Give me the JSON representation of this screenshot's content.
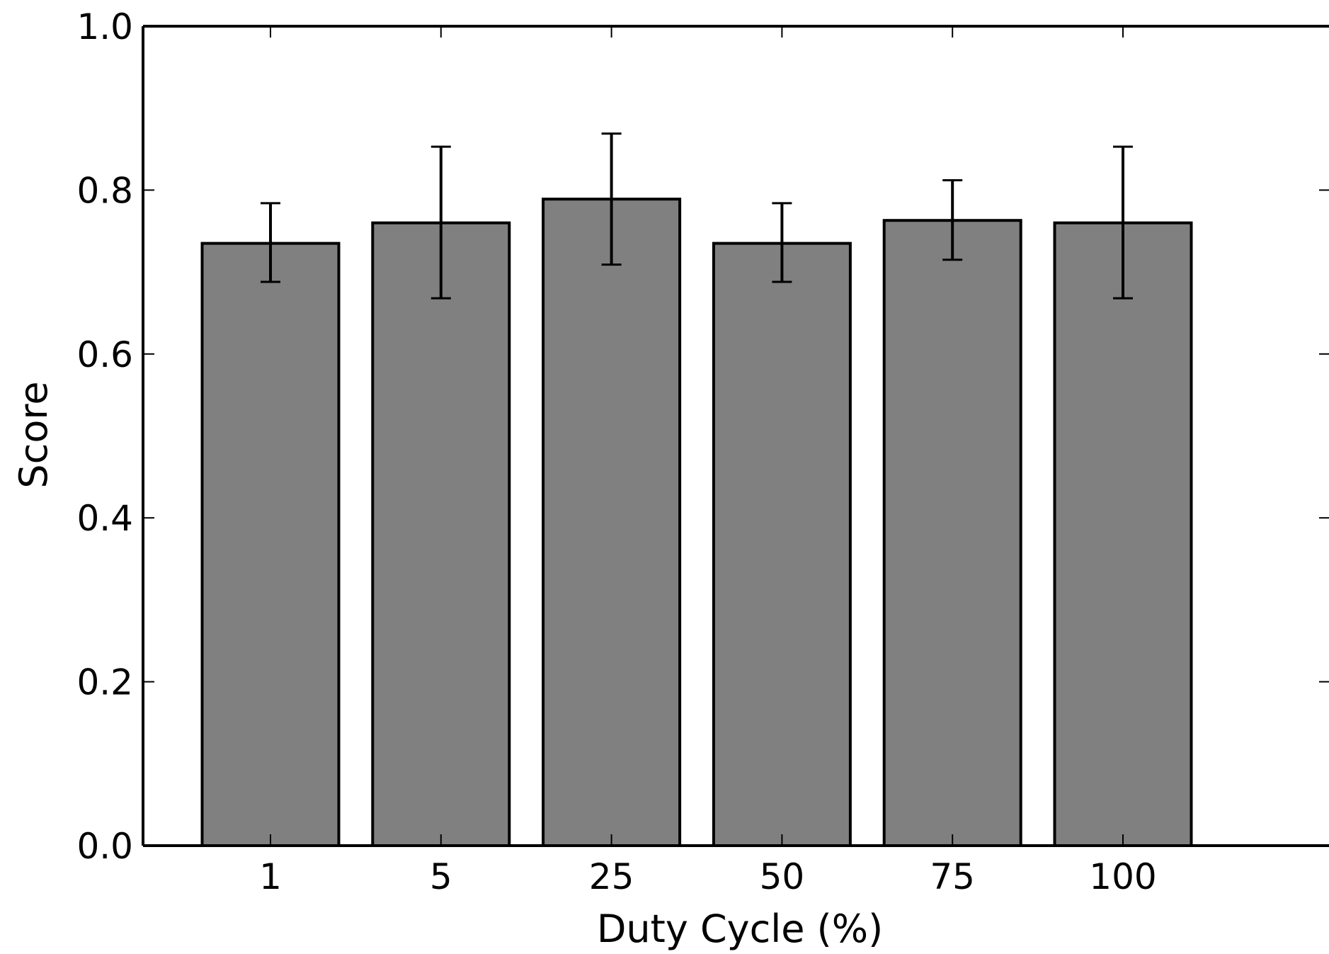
{
  "chart_data": {
    "type": "bar",
    "title": "",
    "xlabel": "Duty Cycle (%)",
    "ylabel": "Score",
    "categories": [
      "1",
      "5",
      "25",
      "50",
      "75",
      "100"
    ],
    "values": [
      0.735,
      0.76,
      0.789,
      0.735,
      0.763,
      0.76
    ],
    "error_low": [
      0.688,
      0.668,
      0.709,
      0.688,
      0.715,
      0.668
    ],
    "error_high": [
      0.784,
      0.853,
      0.869,
      0.784,
      0.812,
      0.853
    ],
    "ylim": [
      0.0,
      1.0
    ],
    "yticks": [
      "0.0",
      "0.2",
      "0.4",
      "0.6",
      "0.8",
      "1.0"
    ],
    "grid": false,
    "legend": "none",
    "colors": {
      "bar_fill": "#808080",
      "bar_edge": "#000000",
      "axis": "#000000"
    }
  }
}
